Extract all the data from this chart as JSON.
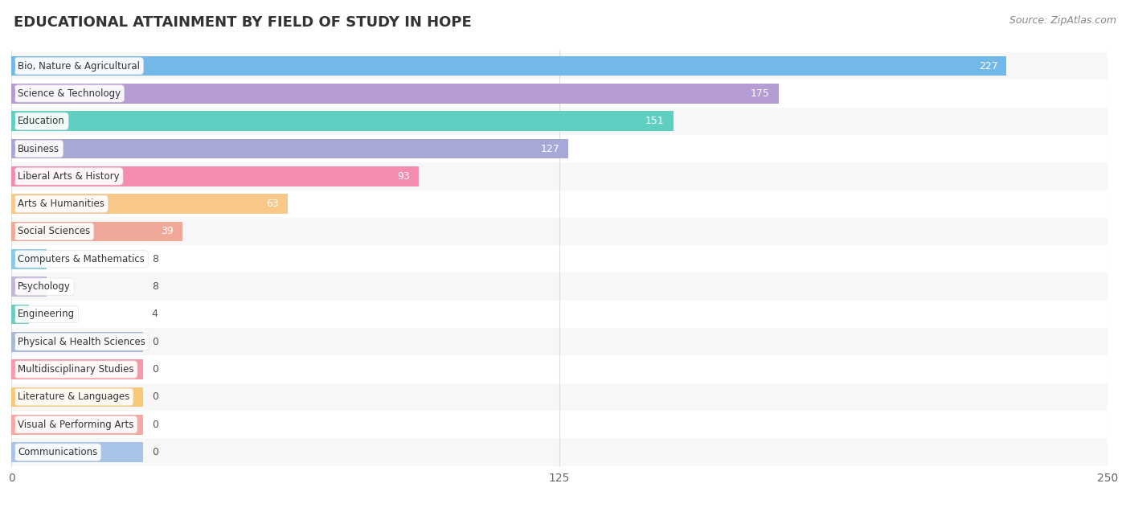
{
  "title": "EDUCATIONAL ATTAINMENT BY FIELD OF STUDY IN HOPE",
  "source": "Source: ZipAtlas.com",
  "categories": [
    "Bio, Nature & Agricultural",
    "Science & Technology",
    "Education",
    "Business",
    "Liberal Arts & History",
    "Arts & Humanities",
    "Social Sciences",
    "Computers & Mathematics",
    "Psychology",
    "Engineering",
    "Physical & Health Sciences",
    "Multidisciplinary Studies",
    "Literature & Languages",
    "Visual & Performing Arts",
    "Communications"
  ],
  "values": [
    227,
    175,
    151,
    127,
    93,
    63,
    39,
    8,
    8,
    4,
    0,
    0,
    0,
    0,
    0
  ],
  "bar_colors": [
    "#72b8e8",
    "#b59cd4",
    "#5ecfc0",
    "#a8a8d8",
    "#f48cb0",
    "#f8c888",
    "#f0a898",
    "#88c8e8",
    "#c4b4d8",
    "#6eccc0",
    "#a8b8d8",
    "#f898a8",
    "#f8c878",
    "#f8a8a0",
    "#a8c4e8"
  ],
  "xlim": [
    0,
    250
  ],
  "xticks": [
    0,
    125,
    250
  ],
  "background_color": "#ffffff",
  "row_bg_even": "#f7f7f7",
  "row_bg_odd": "#ffffff",
  "title_fontsize": 13,
  "source_fontsize": 9,
  "value_label_threshold": 37,
  "bar_min_display": 30
}
